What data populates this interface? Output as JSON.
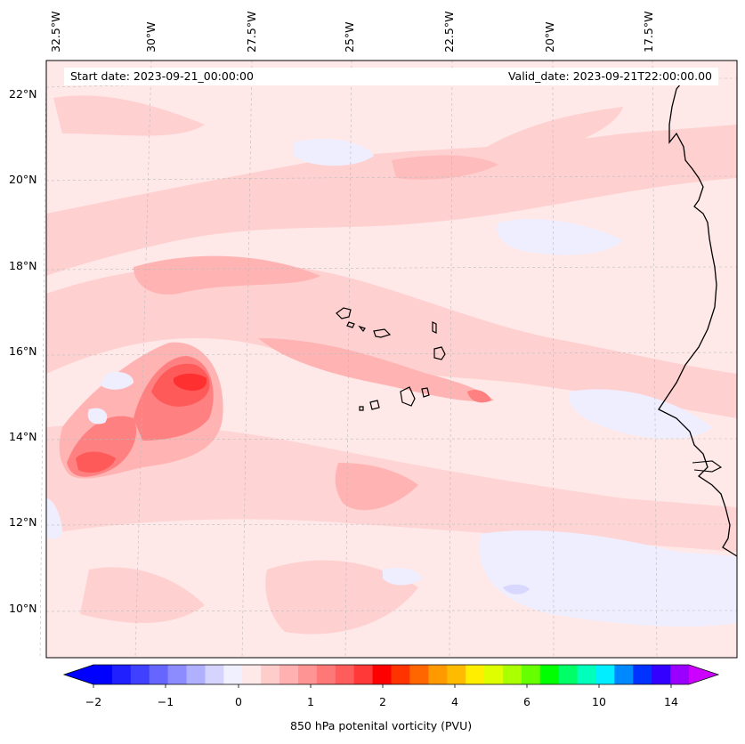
{
  "map": {
    "start_date_label": "Start date: 2023-09-21_00:00:00",
    "valid_date_label": "Valid_date: 2023-09-21T22:00:00.00",
    "lat_labels": [
      "22°N",
      "20°N",
      "18°N",
      "16°N",
      "14°N",
      "12°N",
      "10°N"
    ],
    "lon_labels": [
      "32.5°W",
      "30°W",
      "27.5°W",
      "25°W",
      "22.5°W",
      "20°W",
      "17.5°W"
    ],
    "field": "850 hPa potenital vorticity (PVU)",
    "lat_range": [
      8.9,
      22.7
    ],
    "lon_range": [
      -33.0,
      -15.8
    ]
  },
  "colorbar": {
    "title": "850 hPa potenital vorticity (PVU)",
    "ticks": [
      "−2",
      "−1",
      "0",
      "1",
      "2",
      "4",
      "6",
      "10",
      "14"
    ],
    "colors": [
      "#0000ff",
      "#2020ff",
      "#4040ff",
      "#6666ff",
      "#8c8cff",
      "#b0b0ff",
      "#d4d4ff",
      "#f0f0ff",
      "#ffe8e8",
      "#ffcccc",
      "#ffb0b0",
      "#ff9494",
      "#ff7878",
      "#ff5c5c",
      "#ff3838",
      "#ff0000",
      "#ff3300",
      "#ff6600",
      "#ff9900",
      "#ffbb00",
      "#ffee00",
      "#ddff00",
      "#aaff00",
      "#66ff00",
      "#00ff00",
      "#00ff66",
      "#00ffbb",
      "#00eeff",
      "#0088ff",
      "#0033ff",
      "#3300ff",
      "#9900ff"
    ],
    "extend_low_color": "#0000ff",
    "extend_high_color": "#cc00ff"
  },
  "colors": {
    "background_field": "#ffe8e8",
    "light_pink": "#ffd0d0",
    "mid_pink": "#ffb3b3",
    "strong_red": "#ff5a5a",
    "core_red": "#ff3030",
    "light_blue": "#eeeeff",
    "mid_blue": "#d8d8ff",
    "coast": "#000000"
  }
}
